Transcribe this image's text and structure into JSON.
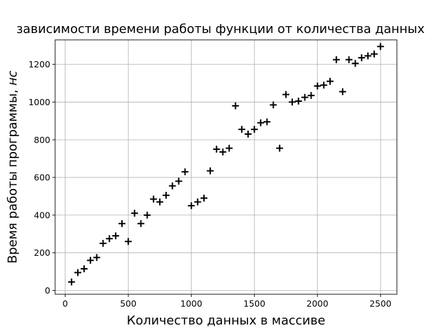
{
  "chart_data": {
    "type": "scatter",
    "title": "зависимости времени работы функции от количества данных",
    "xlabel": "Количество данных в массиве",
    "ylabel_main": "Время работы программы, ",
    "ylabel_unit": "нс",
    "xlim": [
      -80,
      2630
    ],
    "ylim": [
      -20,
      1330
    ],
    "xticks": [
      0,
      500,
      1000,
      1500,
      2000,
      2500
    ],
    "yticks": [
      0,
      200,
      400,
      600,
      800,
      1000,
      1200
    ],
    "grid": true,
    "marker": "+",
    "color": "#000000",
    "series": [
      {
        "x": [
          50,
          100,
          150,
          200,
          250,
          300,
          350,
          400,
          450,
          500,
          550,
          600,
          650,
          700,
          750,
          800,
          850,
          900,
          950,
          1000,
          1050,
          1100,
          1150,
          1200,
          1250,
          1300,
          1350,
          1400,
          1450,
          1500,
          1550,
          1600,
          1650,
          1700,
          1750,
          1800,
          1850,
          1900,
          1950,
          2000,
          2050,
          2100,
          2150,
          2200,
          2250,
          2300,
          2350,
          2400,
          2450,
          2500
        ],
        "values": [
          45,
          95,
          115,
          160,
          175,
          250,
          275,
          290,
          355,
          260,
          410,
          355,
          400,
          485,
          470,
          505,
          555,
          580,
          630,
          450,
          470,
          490,
          635,
          750,
          735,
          755,
          980,
          855,
          830,
          855,
          890,
          895,
          985,
          755,
          1040,
          1000,
          1005,
          1025,
          1035,
          1085,
          1090,
          1110,
          1225,
          1055,
          1225,
          1205,
          1235,
          1245,
          1255,
          1295
        ]
      }
    ]
  }
}
